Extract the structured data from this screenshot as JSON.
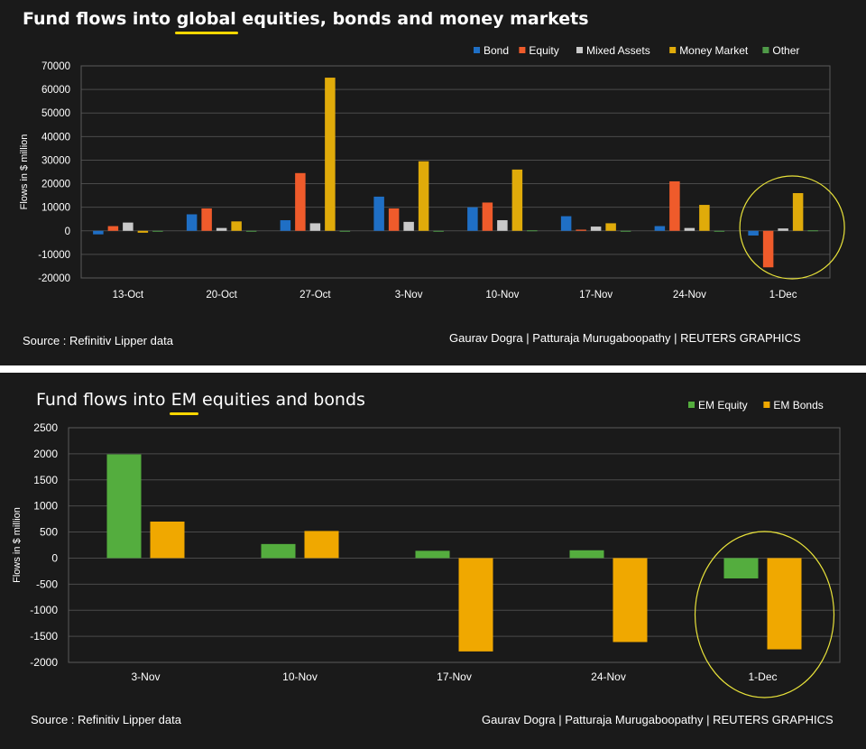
{
  "panels": [
    {
      "title_pre": "Fund flows into ",
      "title_hl": "global",
      "title_post": " equities, bonds and money markets",
      "source": "Source : Refinitiv Lipper data",
      "credit": "Gaurav Dogra | Patturaja Murugaboopathy | REUTERS GRAPHICS"
    },
    {
      "title_pre": "Fund flows into ",
      "title_hl": "EM",
      "title_post": " equities and bonds",
      "source": "Source : Refinitiv Lipper data",
      "credit": "Gaurav Dogra | Patturaja Murugaboopathy | REUTERS GRAPHICS"
    }
  ],
  "chart_data": [
    {
      "type": "bar",
      "title": "Fund flows into global equities, bonds and money markets",
      "ylabel": "Flows in $ million",
      "ylim": [
        -20000,
        70000
      ],
      "yticks": [
        -20000,
        -10000,
        0,
        10000,
        20000,
        30000,
        40000,
        50000,
        60000,
        70000
      ],
      "grid": true,
      "legend_position": "top-right",
      "categories": [
        "13-Oct",
        "20-Oct",
        "27-Oct",
        "3-Nov",
        "10-Nov",
        "17-Nov",
        "24-Nov",
        "1-Dec"
      ],
      "series": [
        {
          "name": "Bond",
          "color": "#1f6fc5",
          "values": [
            -1500,
            7000,
            4500,
            14500,
            10000,
            6200,
            2000,
            -2000
          ]
        },
        {
          "name": "Equity",
          "color": "#ef5b2b",
          "values": [
            2000,
            9500,
            24500,
            9500,
            12000,
            500,
            21000,
            -15500
          ]
        },
        {
          "name": "Mixed Assets",
          "color": "#c9c9c9",
          "values": [
            3500,
            1200,
            3200,
            3800,
            4500,
            1800,
            1200,
            1000
          ]
        },
        {
          "name": "Money Market",
          "color": "#e0ab0a",
          "values": [
            -800,
            4000,
            65000,
            29500,
            26000,
            3200,
            11000,
            16000
          ]
        },
        {
          "name": "Other",
          "color": "#4f9a48",
          "values": [
            -300,
            -200,
            -300,
            -300,
            200,
            -200,
            -300,
            200
          ]
        }
      ],
      "highlight_category": "1-Dec"
    },
    {
      "type": "bar",
      "title": "Fund flows into EM equities and bonds",
      "ylabel": "Flows in $ million",
      "ylim": [
        -2000,
        2500
      ],
      "yticks": [
        -2000,
        -1500,
        -1000,
        -500,
        0,
        500,
        1000,
        1500,
        2000,
        2500
      ],
      "grid": true,
      "legend_position": "top-right",
      "categories": [
        "3-Nov",
        "10-Nov",
        "17-Nov",
        "24-Nov",
        "1-Dec"
      ],
      "series": [
        {
          "name": "EM Equity",
          "color": "#54ad3e",
          "values": [
            1990,
            270,
            140,
            150,
            -390
          ]
        },
        {
          "name": "EM Bonds",
          "color": "#f0a800",
          "values": [
            700,
            520,
            -1790,
            -1610,
            -1750
          ]
        }
      ],
      "highlight_category": "1-Dec"
    }
  ]
}
